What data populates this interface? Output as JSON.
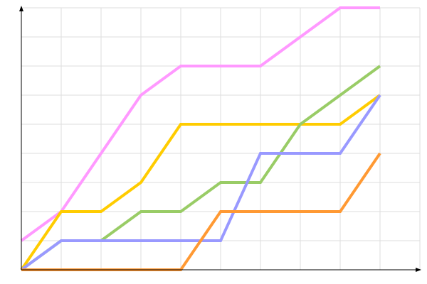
{
  "chart_data": {
    "type": "line",
    "title": "",
    "xlabel": "",
    "ylabel": "",
    "x": [
      0,
      1,
      2,
      3,
      4,
      5,
      6,
      7,
      8,
      9
    ],
    "xlim": [
      0,
      10
    ],
    "ylim": [
      0,
      9
    ],
    "grid": true,
    "legend": "none",
    "series": [
      {
        "color": "#ff99ff",
        "values": [
          1,
          2,
          4,
          6,
          7,
          7,
          7,
          8,
          9,
          9
        ]
      },
      {
        "color": "#ffcc00",
        "values": [
          0,
          2,
          2,
          3,
          5,
          5,
          5,
          5,
          5,
          6
        ]
      },
      {
        "color": "#99cc66",
        "values": [
          0,
          1,
          1,
          2,
          2,
          3,
          3,
          5,
          6,
          7
        ]
      },
      {
        "color": "#9999ff",
        "values": [
          0,
          1,
          1,
          1,
          1,
          1,
          4,
          4,
          4,
          6
        ]
      },
      {
        "color": "#ff9933",
        "values": [
          0,
          0,
          0,
          0,
          0,
          2,
          2,
          2,
          2,
          4
        ]
      }
    ]
  }
}
